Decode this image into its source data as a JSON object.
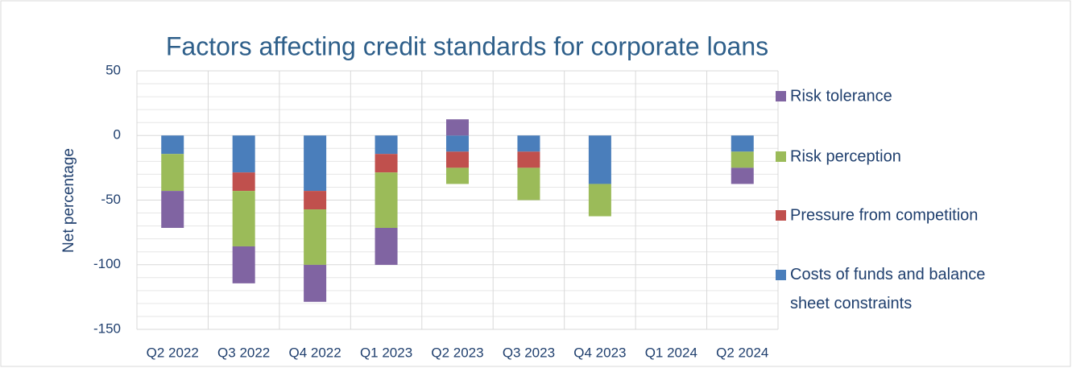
{
  "chart_data": {
    "type": "bar",
    "stacked": true,
    "title": "Factors affecting credit standards for corporate loans",
    "y_label": "Net percentage",
    "categories": [
      "Q2 2022",
      "Q3 2022",
      "Q4 2022",
      "Q1 2023",
      "Q2 2023",
      "Q3 2023",
      "Q4 2023",
      "Q1 2024",
      "Q2 2024"
    ],
    "series": [
      {
        "name": "Costs of funds and balance sheet constraints",
        "color": "#4a7ebb",
        "values": [
          -14.3,
          -28.6,
          -42.9,
          -14.3,
          -12.5,
          -12.5,
          -37.5,
          0,
          -12.5
        ]
      },
      {
        "name": "Pressure from competition",
        "color": "#c0504d",
        "values": [
          0,
          -14.3,
          -14.3,
          -14.3,
          -12.5,
          -12.5,
          0,
          0,
          0
        ]
      },
      {
        "name": "Risk perception",
        "color": "#9bbb59",
        "values": [
          -28.6,
          -42.9,
          -42.9,
          -42.9,
          -12.5,
          -25,
          -25,
          0,
          -12.5
        ]
      },
      {
        "name": "Risk tolerance",
        "color": "#8064a2",
        "values": [
          -28.6,
          -28.6,
          -28.6,
          -28.6,
          12.5,
          0,
          0,
          0,
          -12.5
        ]
      }
    ],
    "ylim": [
      -150,
      50
    ],
    "yticks": [
      -150,
      -100,
      -50,
      0,
      50
    ],
    "minor_yticks": [
      -140,
      -130,
      -120,
      -110,
      -90,
      -80,
      -70,
      -60,
      -40,
      -30,
      -20,
      -10,
      10,
      20,
      30,
      40
    ],
    "grid": true,
    "legend": "right"
  }
}
